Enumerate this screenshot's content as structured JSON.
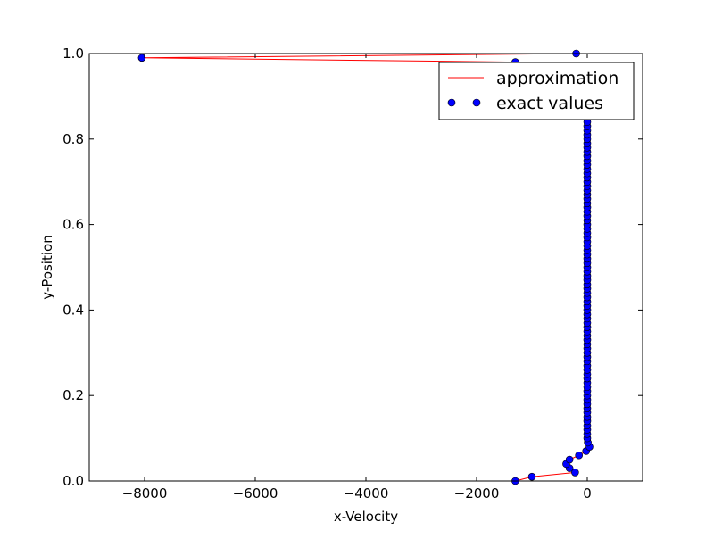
{
  "chart_data": {
    "type": "scatter",
    "title": "",
    "xlabel": "x-Velocity",
    "ylabel": "y-Position",
    "xlim": [
      -9000,
      1000
    ],
    "ylim": [
      0.0,
      1.0
    ],
    "xticks": [
      -8000,
      -6000,
      -4000,
      -2000,
      0
    ],
    "xtick_labels": [
      "−8000",
      "−6000",
      "−4000",
      "−2000",
      "0"
    ],
    "yticks": [
      0.0,
      0.2,
      0.4,
      0.6,
      0.8,
      1.0
    ],
    "ytick_labels": [
      "0.0",
      "0.2",
      "0.4",
      "0.6",
      "0.8",
      "1.0"
    ],
    "grid": false,
    "legend_placement": "top-right",
    "series": [
      {
        "name": "approximation",
        "style": "line",
        "color": "#ff0000",
        "points": [
          [
            -1300,
            0.0
          ],
          [
            -1000,
            0.01
          ],
          [
            -220,
            0.02
          ],
          [
            -320,
            0.03
          ],
          [
            -380,
            0.04
          ],
          [
            -320,
            0.05
          ],
          [
            -150,
            0.06
          ],
          [
            -20,
            0.07
          ],
          [
            40,
            0.08
          ],
          [
            10,
            0.09
          ],
          [
            0,
            0.1
          ],
          [
            0,
            0.2
          ],
          [
            0,
            0.3
          ],
          [
            0,
            0.4
          ],
          [
            0,
            0.5
          ],
          [
            0,
            0.6
          ],
          [
            0,
            0.7
          ],
          [
            0,
            0.8
          ],
          [
            0,
            0.85
          ],
          [
            0,
            0.9
          ],
          [
            0,
            0.95
          ],
          [
            -1300,
            0.98
          ],
          [
            -8050,
            0.99
          ],
          [
            -200,
            1.0
          ]
        ]
      },
      {
        "name": "exact values",
        "style": "marker",
        "color": "#0000ff",
        "points": [
          [
            -1300,
            0.0
          ],
          [
            -1000,
            0.01
          ],
          [
            -220,
            0.02
          ],
          [
            -320,
            0.03
          ],
          [
            -380,
            0.04
          ],
          [
            -320,
            0.05
          ],
          [
            -150,
            0.06
          ],
          [
            -20,
            0.07
          ],
          [
            40,
            0.08
          ],
          [
            10,
            0.09
          ],
          [
            0,
            0.1
          ],
          [
            0,
            0.11
          ],
          [
            0,
            0.12
          ],
          [
            0,
            0.13
          ],
          [
            0,
            0.14
          ],
          [
            0,
            0.15
          ],
          [
            0,
            0.16
          ],
          [
            0,
            0.17
          ],
          [
            0,
            0.18
          ],
          [
            0,
            0.19
          ],
          [
            0,
            0.2
          ],
          [
            0,
            0.21
          ],
          [
            0,
            0.22
          ],
          [
            0,
            0.23
          ],
          [
            0,
            0.24
          ],
          [
            0,
            0.25
          ],
          [
            0,
            0.26
          ],
          [
            0,
            0.27
          ],
          [
            0,
            0.28
          ],
          [
            0,
            0.29
          ],
          [
            0,
            0.3
          ],
          [
            0,
            0.31
          ],
          [
            0,
            0.32
          ],
          [
            0,
            0.33
          ],
          [
            0,
            0.34
          ],
          [
            0,
            0.35
          ],
          [
            0,
            0.36
          ],
          [
            0,
            0.37
          ],
          [
            0,
            0.38
          ],
          [
            0,
            0.39
          ],
          [
            0,
            0.4
          ],
          [
            0,
            0.41
          ],
          [
            0,
            0.42
          ],
          [
            0,
            0.43
          ],
          [
            0,
            0.44
          ],
          [
            0,
            0.45
          ],
          [
            0,
            0.46
          ],
          [
            0,
            0.47
          ],
          [
            0,
            0.48
          ],
          [
            0,
            0.49
          ],
          [
            0,
            0.5
          ],
          [
            0,
            0.51
          ],
          [
            0,
            0.52
          ],
          [
            0,
            0.53
          ],
          [
            0,
            0.54
          ],
          [
            0,
            0.55
          ],
          [
            0,
            0.56
          ],
          [
            0,
            0.57
          ],
          [
            0,
            0.58
          ],
          [
            0,
            0.59
          ],
          [
            0,
            0.6
          ],
          [
            0,
            0.61
          ],
          [
            0,
            0.62
          ],
          [
            0,
            0.63
          ],
          [
            0,
            0.64
          ],
          [
            0,
            0.65
          ],
          [
            0,
            0.66
          ],
          [
            0,
            0.67
          ],
          [
            0,
            0.68
          ],
          [
            0,
            0.69
          ],
          [
            0,
            0.7
          ],
          [
            0,
            0.71
          ],
          [
            0,
            0.72
          ],
          [
            0,
            0.73
          ],
          [
            0,
            0.74
          ],
          [
            0,
            0.75
          ],
          [
            0,
            0.76
          ],
          [
            0,
            0.77
          ],
          [
            0,
            0.78
          ],
          [
            0,
            0.79
          ],
          [
            0,
            0.8
          ],
          [
            0,
            0.81
          ],
          [
            0,
            0.82
          ],
          [
            0,
            0.83
          ],
          [
            0,
            0.84
          ],
          [
            -1300,
            0.98
          ],
          [
            -8050,
            0.99
          ],
          [
            -200,
            1.0
          ]
        ]
      }
    ]
  }
}
